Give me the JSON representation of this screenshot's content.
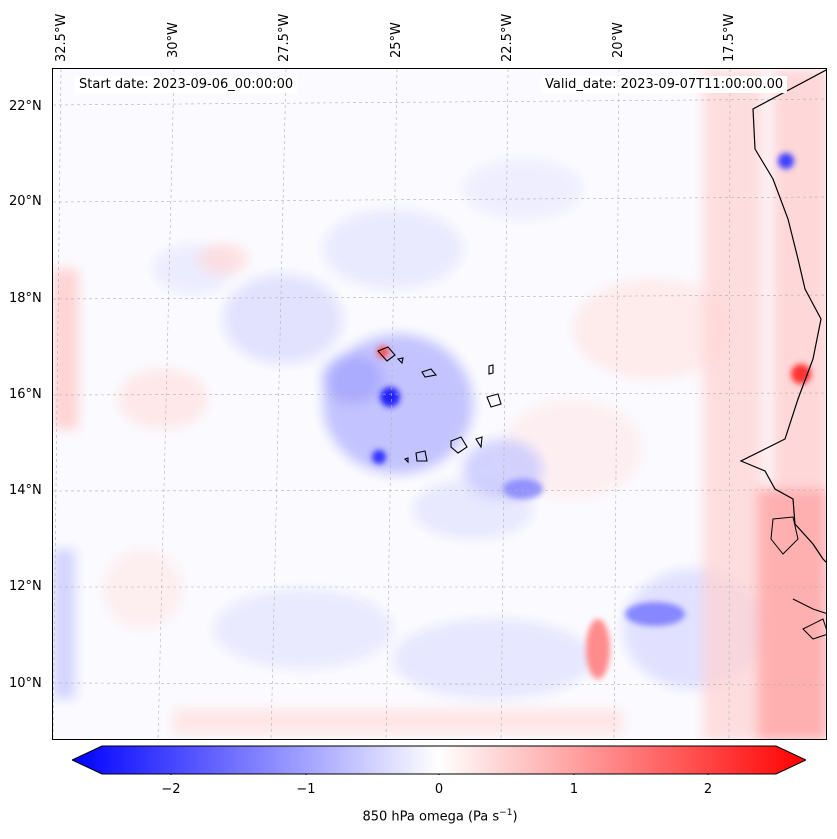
{
  "map": {
    "start_date": "Start date: 2023-09-06_00:00:00",
    "valid_date": "Valid_date: 2023-09-07T11:00:00.00",
    "lon_labels": [
      "32.5°W",
      "30°W",
      "27.5°W",
      "25°W",
      "22.5°W",
      "20°W",
      "17.5°W"
    ],
    "lat_labels": [
      "22°N",
      "20°N",
      "18°N",
      "16°N",
      "14°N",
      "12°N",
      "10°N"
    ],
    "field": "850 hPa omega",
    "colormap": [
      "#0000ff",
      "#ffffff",
      "#ff0000"
    ]
  },
  "colorbar": {
    "ticks": [
      "−2",
      "−1",
      "0",
      "1",
      "2"
    ],
    "label_main": "850 hPa omega (Pa s",
    "label_sup": "−1",
    "label_end": ")",
    "range": [
      -2.7,
      2.7
    ]
  }
}
